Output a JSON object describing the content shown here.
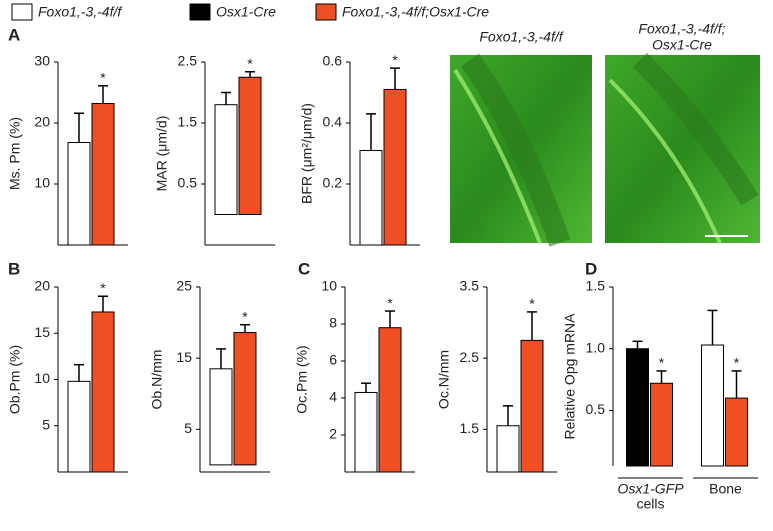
{
  "legend": [
    {
      "name": "Foxo1,-3,-4f/f",
      "color": "#ffffff"
    },
    {
      "name": "Osx1-Cre",
      "color": "#000000"
    },
    {
      "name": "Foxo1,-3,-4f/f;Osx1-Cre",
      "color": "#f04e23"
    }
  ],
  "panels": [
    "A",
    "B",
    "C",
    "D"
  ],
  "images": [
    {
      "label": [
        "Foxo1,-3,-4f/f"
      ]
    },
    {
      "label": [
        "Foxo1,-3,-4f/f;",
        "Osx1-Cre"
      ]
    }
  ],
  "chart_data": [
    {
      "type": "bar",
      "ylabel": "Ms. Pm (%)",
      "ylim": [
        0,
        30
      ],
      "yticks": [
        10,
        20,
        30
      ],
      "series": [
        {
          "color": "#ffffff",
          "values": [
            16.8
          ],
          "errors": [
            4.8
          ]
        },
        {
          "color": "#f04e23",
          "values": [
            23.2
          ],
          "errors": [
            2.9
          ],
          "labels": [
            "*"
          ]
        }
      ]
    },
    {
      "type": "bar",
      "ylabel": "MAR (μm/d)",
      "ylim": [
        -0.5,
        2.5
      ],
      "yticks": [
        0.5,
        1.5,
        2.5
      ],
      "series": [
        {
          "color": "#ffffff",
          "values": [
            1.8
          ],
          "errors": [
            0.2
          ]
        },
        {
          "color": "#f04e23",
          "values": [
            2.25
          ],
          "errors": [
            0.09
          ],
          "labels": [
            "*"
          ]
        }
      ]
    },
    {
      "type": "bar",
      "ylabel": "BFR (μm²/μm/d)",
      "ylim": [
        0,
        0.6
      ],
      "yticks": [
        0.2,
        0.4,
        0.6
      ],
      "series": [
        {
          "color": "#ffffff",
          "values": [
            0.31
          ],
          "errors": [
            0.12
          ]
        },
        {
          "color": "#f04e23",
          "values": [
            0.51
          ],
          "errors": [
            0.07
          ],
          "labels": [
            "*"
          ]
        }
      ]
    },
    {
      "type": "bar",
      "ylabel": "Ob.Pm (%)",
      "ylim": [
        0,
        20
      ],
      "yticks": [
        5,
        10,
        15,
        20
      ],
      "series": [
        {
          "color": "#ffffff",
          "values": [
            9.8
          ],
          "errors": [
            1.8
          ]
        },
        {
          "color": "#f04e23",
          "values": [
            17.3
          ],
          "errors": [
            1.7
          ],
          "labels": [
            "*"
          ]
        }
      ]
    },
    {
      "type": "bar",
      "ylabel": "Ob.N/mm",
      "ylim": [
        -1,
        25
      ],
      "yticks": [
        5,
        15,
        25
      ],
      "series": [
        {
          "color": "#ffffff",
          "values": [
            13.5
          ],
          "errors": [
            2.8
          ]
        },
        {
          "color": "#f04e23",
          "values": [
            18.6
          ],
          "errors": [
            1.1
          ],
          "labels": [
            "*"
          ]
        }
      ]
    },
    {
      "type": "bar",
      "ylabel": "Oc.Pm (%)",
      "ylim": [
        0,
        10
      ],
      "yticks": [
        2,
        4,
        6,
        8,
        10
      ],
      "series": [
        {
          "color": "#ffffff",
          "values": [
            4.3
          ],
          "errors": [
            0.5
          ]
        },
        {
          "color": "#f04e23",
          "values": [
            7.8
          ],
          "errors": [
            0.9
          ],
          "labels": [
            "*"
          ]
        }
      ]
    },
    {
      "type": "bar",
      "ylabel": "Oc.N/mm",
      "ylim": [
        0.9,
        3.5
      ],
      "yticks": [
        1.5,
        2.5,
        3.5
      ],
      "series": [
        {
          "color": "#ffffff",
          "values": [
            1.55
          ],
          "errors": [
            0.28
          ]
        },
        {
          "color": "#f04e23",
          "values": [
            2.75
          ],
          "errors": [
            0.4
          ],
          "labels": [
            "*"
          ]
        }
      ]
    },
    {
      "type": "grouped-bar",
      "ylabel": "Relative Opg mRNA",
      "ylim": [
        0.05,
        1.5
      ],
      "yticks": [
        0.5,
        {
          "value": 1,
          "label": "1.0"
        },
        1.5
      ],
      "categories": [
        [
          "Osx1-GFP",
          "cells"
        ],
        [
          "Bone"
        ]
      ],
      "series": [
        {
          "color": "#000000",
          "values": [
            1.0,
            null
          ],
          "errors": [
            0.06,
            null
          ]
        },
        {
          "color": "#ffffff",
          "values": [
            null,
            1.03
          ],
          "errors": [
            null,
            0.28
          ]
        },
        {
          "color": "#f04e23",
          "values": [
            0.72,
            0.6
          ],
          "errors": [
            0.1,
            0.22
          ],
          "labels": [
            "*",
            "*"
          ]
        }
      ]
    }
  ]
}
